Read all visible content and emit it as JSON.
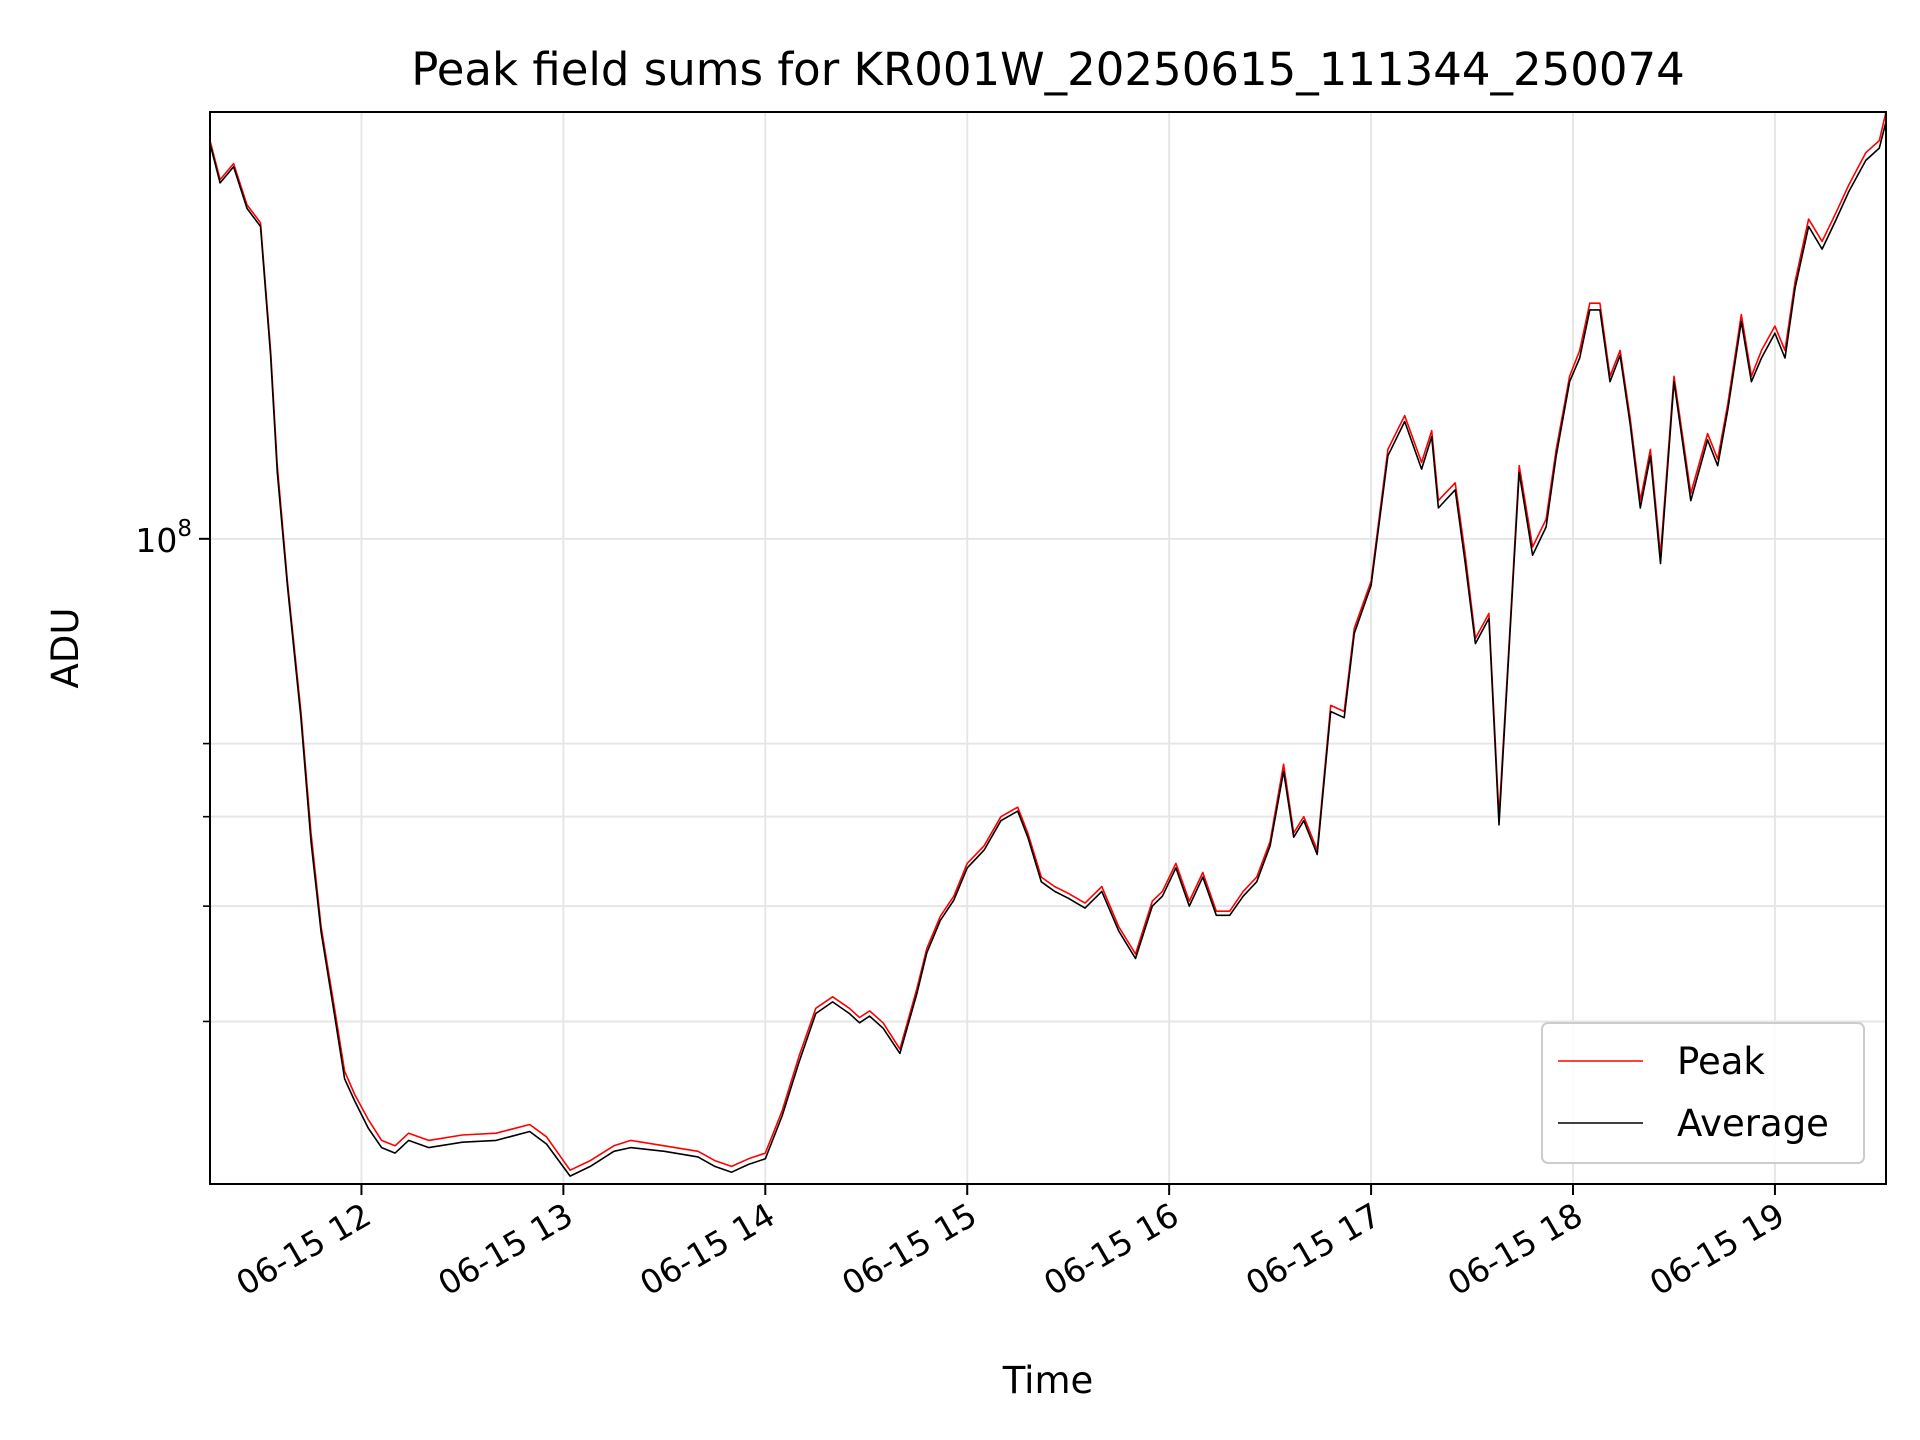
{
  "chart_data": {
    "type": "line",
    "title": "Peak field sums for KR001W_20250615_111344_250074",
    "xlabel": "Time",
    "ylabel": "ADU",
    "y_scale": "log",
    "y_major_tick_labels": [
      {
        "value": 100000000,
        "base": "10",
        "exp": "8"
      }
    ],
    "y_minor_ticks": [
      30000000,
      40000000,
      50000000,
      60000000
    ],
    "xlim": [
      "2025-06-15 11:15",
      "2025-06-15 19:33"
    ],
    "ylim": [
      20000000,
      290000000
    ],
    "x_tick_labels": [
      "06-15 12",
      "06-15 13",
      "06-15 14",
      "06-15 15",
      "06-15 16",
      "06-15 17",
      "06-15 18",
      "06-15 19"
    ],
    "x_tick_times": [
      "2025-06-15 12:00",
      "2025-06-15 13:00",
      "2025-06-15 14:00",
      "2025-06-15 15:00",
      "2025-06-15 16:00",
      "2025-06-15 17:00",
      "2025-06-15 18:00",
      "2025-06-15 19:00"
    ],
    "grid": true,
    "legend_position": "lower right",
    "x": [
      "2025-06-15 11:15",
      "2025-06-15 11:18",
      "2025-06-15 11:22",
      "2025-06-15 11:26",
      "2025-06-15 11:30",
      "2025-06-15 11:33",
      "2025-06-15 11:35",
      "2025-06-15 11:38",
      "2025-06-15 11:42",
      "2025-06-15 11:45",
      "2025-06-15 11:48",
      "2025-06-15 11:52",
      "2025-06-15 11:55",
      "2025-06-15 11:58",
      "2025-06-15 12:02",
      "2025-06-15 12:06",
      "2025-06-15 12:10",
      "2025-06-15 12:14",
      "2025-06-15 12:20",
      "2025-06-15 12:30",
      "2025-06-15 12:40",
      "2025-06-15 12:50",
      "2025-06-15 12:55",
      "2025-06-15 13:02",
      "2025-06-15 13:08",
      "2025-06-15 13:15",
      "2025-06-15 13:20",
      "2025-06-15 13:30",
      "2025-06-15 13:40",
      "2025-06-15 13:45",
      "2025-06-15 13:50",
      "2025-06-15 13:55",
      "2025-06-15 14:00",
      "2025-06-15 14:05",
      "2025-06-15 14:10",
      "2025-06-15 14:15",
      "2025-06-15 14:20",
      "2025-06-15 14:25",
      "2025-06-15 14:28",
      "2025-06-15 14:31",
      "2025-06-15 14:35",
      "2025-06-15 14:40",
      "2025-06-15 14:45",
      "2025-06-15 14:48",
      "2025-06-15 14:52",
      "2025-06-15 14:56",
      "2025-06-15 15:00",
      "2025-06-15 15:05",
      "2025-06-15 15:10",
      "2025-06-15 15:15",
      "2025-06-15 15:18",
      "2025-06-15 15:22",
      "2025-06-15 15:26",
      "2025-06-15 15:30",
      "2025-06-15 15:35",
      "2025-06-15 15:40",
      "2025-06-15 15:45",
      "2025-06-15 15:50",
      "2025-06-15 15:55",
      "2025-06-15 15:58",
      "2025-06-15 16:02",
      "2025-06-15 16:06",
      "2025-06-15 16:10",
      "2025-06-15 16:14",
      "2025-06-15 16:18",
      "2025-06-15 16:22",
      "2025-06-15 16:26",
      "2025-06-15 16:30",
      "2025-06-15 16:34",
      "2025-06-15 16:37",
      "2025-06-15 16:40",
      "2025-06-15 16:44",
      "2025-06-15 16:48",
      "2025-06-15 16:52",
      "2025-06-15 16:55",
      "2025-06-15 17:00",
      "2025-06-15 17:05",
      "2025-06-15 17:10",
      "2025-06-15 17:15",
      "2025-06-15 17:18",
      "2025-06-15 17:20",
      "2025-06-15 17:22",
      "2025-06-15 17:25",
      "2025-06-15 17:28",
      "2025-06-15 17:31",
      "2025-06-15 17:35",
      "2025-06-15 17:38",
      "2025-06-15 17:41",
      "2025-06-15 17:44",
      "2025-06-15 17:48",
      "2025-06-15 17:52",
      "2025-06-15 17:55",
      "2025-06-15 17:59",
      "2025-06-15 18:02",
      "2025-06-15 18:05",
      "2025-06-15 18:08",
      "2025-06-15 18:11",
      "2025-06-15 18:14",
      "2025-06-15 18:17",
      "2025-06-15 18:20",
      "2025-06-15 18:23",
      "2025-06-15 18:26",
      "2025-06-15 18:30",
      "2025-06-15 18:35",
      "2025-06-15 18:40",
      "2025-06-15 18:43",
      "2025-06-15 18:46",
      "2025-06-15 18:50",
      "2025-06-15 18:53",
      "2025-06-15 18:56",
      "2025-06-15 19:00",
      "2025-06-15 19:03",
      "2025-06-15 19:06",
      "2025-06-15 19:10",
      "2025-06-15 19:14",
      "2025-06-15 19:18",
      "2025-06-15 19:22",
      "2025-06-15 19:27",
      "2025-06-15 19:31",
      "2025-06-15 19:33"
    ],
    "series": [
      {
        "name": "Peak",
        "color": "#ff0000",
        "values": [
          270000000,
          245000000,
          255000000,
          230000000,
          220000000,
          160000000,
          120000000,
          90000000,
          65000000,
          48000000,
          38000000,
          31000000,
          26500000,
          25000000,
          23500000,
          22300000,
          22000000,
          22700000,
          22300000,
          22600000,
          22700000,
          23200000,
          22500000,
          20700000,
          21200000,
          22000000,
          22300000,
          22000000,
          21700000,
          21200000,
          20900000,
          21300000,
          21600000,
          24000000,
          27500000,
          31000000,
          31900000,
          31000000,
          30300000,
          30800000,
          29900000,
          28000000,
          32500000,
          36000000,
          39000000,
          41000000,
          44500000,
          46500000,
          50000000,
          51200000,
          48000000,
          43000000,
          42000000,
          41300000,
          40300000,
          42000000,
          38000000,
          35500000,
          40500000,
          41500000,
          44500000,
          40500000,
          43500000,
          39500000,
          39500000,
          41500000,
          43000000,
          47000000,
          57000000,
          48000000,
          50000000,
          46000000,
          66000000,
          65000000,
          80000000,
          90000000,
          125000000,
          136000000,
          121000000,
          131000000,
          110000000,
          112000000,
          115000000,
          96000000,
          78000000,
          83000000,
          50000000,
          77000000,
          120000000,
          98000000,
          105000000,
          125000000,
          150000000,
          160000000,
          180000000,
          180000000,
          150000000,
          160000000,
          135000000,
          110000000,
          125000000,
          96000000,
          150000000,
          112000000,
          130000000,
          122000000,
          140000000,
          175000000,
          150000000,
          160000000,
          170000000,
          160000000,
          190000000,
          222000000,
          210000000,
          225000000,
          242000000,
          262000000,
          270000000,
          290000000
        ]
      },
      {
        "name": "Average",
        "color": "#000000",
        "values": [
          268000000,
          243000000,
          253000000,
          228000000,
          218000000,
          158000000,
          118000000,
          89000000,
          64000000,
          47000000,
          37500000,
          30500000,
          26000000,
          24600000,
          23000000,
          21900000,
          21600000,
          22300000,
          21900000,
          22200000,
          22300000,
          22800000,
          22100000,
          20400000,
          20900000,
          21700000,
          21900000,
          21700000,
          21400000,
          20900000,
          20600000,
          21000000,
          21300000,
          23700000,
          27100000,
          30600000,
          31500000,
          30600000,
          29900000,
          30400000,
          29500000,
          27700000,
          32100000,
          35600000,
          38600000,
          40600000,
          44000000,
          46000000,
          49500000,
          50700000,
          47500000,
          42500000,
          41500000,
          40800000,
          39800000,
          41500000,
          37600000,
          35100000,
          40000000,
          41000000,
          44000000,
          40000000,
          43000000,
          39100000,
          39100000,
          41000000,
          42500000,
          46500000,
          56000000,
          47500000,
          49500000,
          45500000,
          65000000,
          64000000,
          79000000,
          89000000,
          123000000,
          134000000,
          119000000,
          129000000,
          108000000,
          110000000,
          113000000,
          94000000,
          77000000,
          82000000,
          49000000,
          76000000,
          118000000,
          96000000,
          103000000,
          123000000,
          148000000,
          157000000,
          177000000,
          177000000,
          148000000,
          158000000,
          133000000,
          108000000,
          123000000,
          94000000,
          148000000,
          110000000,
          128000000,
          120000000,
          138000000,
          172000000,
          148000000,
          157000000,
          167000000,
          157000000,
          187000000,
          218000000,
          206000000,
          221000000,
          238000000,
          257000000,
          265000000,
          283000000
        ]
      }
    ]
  }
}
